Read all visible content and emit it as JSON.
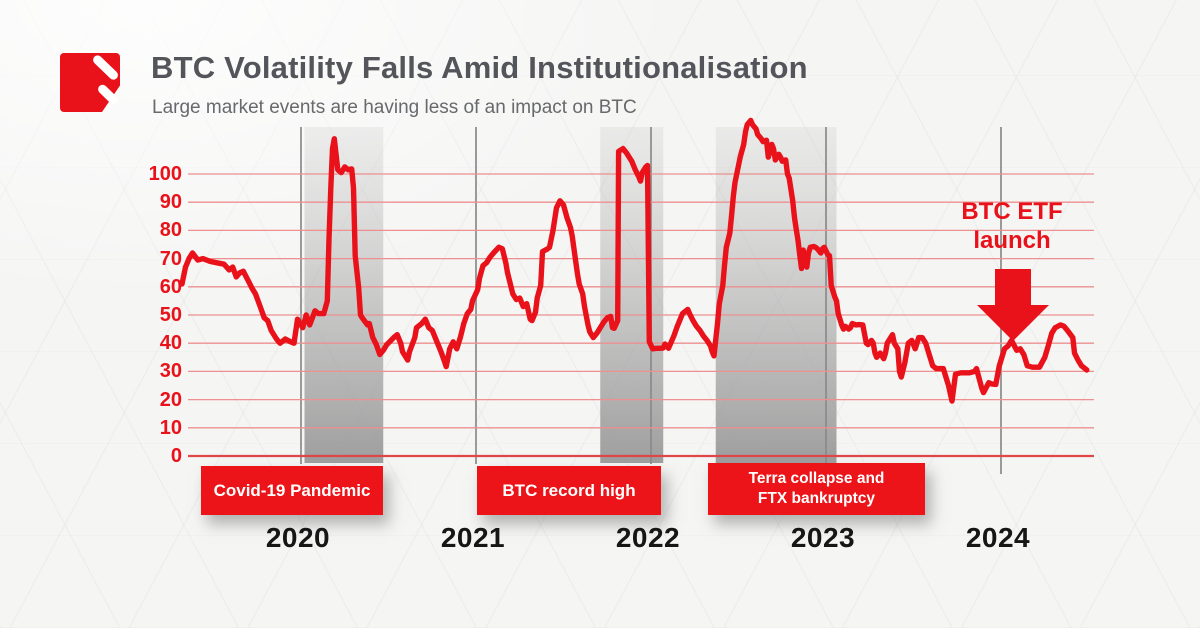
{
  "header": {
    "title": "BTC Volatility Falls Amid Institutionalisation",
    "subtitle": "Large market events are having less of an impact on BTC",
    "logo": "red-square-brand-mark"
  },
  "colors": {
    "accent_red": "#e9121a",
    "box_red": "#ec1418",
    "gridline_red": "#ec9090",
    "zero_line_red": "#e0474a",
    "year_line_gray": "#8a8a8a",
    "band_gray": "#9f9f9f",
    "title_gray": "#54555a",
    "subtitle_gray": "#68696c",
    "year_label_black": "#161616"
  },
  "events": {
    "covid": {
      "label": "Covid-19 Pandemic"
    },
    "btc_high": {
      "label": "BTC record high"
    },
    "terra": {
      "line1": "Terra collapse and",
      "line2": "FTX bankruptcy"
    }
  },
  "chart_data": {
    "type": "line",
    "title": "BTC Volatility Falls Amid Institutionalisation",
    "subtitle": "Large market events are having less of an impact on BTC",
    "xlabel": "",
    "ylabel": "",
    "xlim": [
      2019.3,
      2024.55
    ],
    "ylim": [
      0,
      120
    ],
    "grid": "horizontal-red, vertical-gray-year-lines",
    "legend": "none",
    "x_ticks": [
      2020,
      2021,
      2022,
      2023,
      2024
    ],
    "y_ticks": [
      100,
      90,
      80,
      70,
      60,
      50,
      40,
      30,
      20,
      10,
      0
    ],
    "bands": [
      {
        "label": "Covid-19 Pandemic",
        "from": 2020.02,
        "to": 2020.47
      },
      {
        "label": "BTC record high",
        "from": 2021.71,
        "to": 2022.07
      },
      {
        "label": "Terra collapse and FTX bankruptcy",
        "from": 2022.37,
        "to": 2023.06
      }
    ],
    "annotation": {
      "line1": "BTC ETF",
      "line2": "launch",
      "x": 2024.06,
      "arrow": "down"
    },
    "series": [
      {
        "name": "BTC volatility",
        "color": "#e9121a",
        "points": [
          [
            2019.32,
            61
          ],
          [
            2019.34,
            67
          ],
          [
            2019.36,
            70
          ],
          [
            2019.38,
            72
          ],
          [
            2019.41,
            69.5
          ],
          [
            2019.44,
            70
          ],
          [
            2019.48,
            69
          ],
          [
            2019.52,
            68.5
          ],
          [
            2019.56,
            68
          ],
          [
            2019.59,
            66
          ],
          [
            2019.61,
            67
          ],
          [
            2019.63,
            63.5
          ],
          [
            2019.65,
            65
          ],
          [
            2019.67,
            65.5
          ],
          [
            2019.7,
            62
          ],
          [
            2019.72,
            59.5
          ],
          [
            2019.74,
            57.5
          ],
          [
            2019.77,
            52.5
          ],
          [
            2019.79,
            49
          ],
          [
            2019.81,
            48
          ],
          [
            2019.83,
            44.5
          ],
          [
            2019.86,
            41.5
          ],
          [
            2019.88,
            40
          ],
          [
            2019.91,
            41.5
          ],
          [
            2019.94,
            40.5
          ],
          [
            2019.96,
            40
          ],
          [
            2019.98,
            48.5
          ],
          [
            2020.01,
            45.5
          ],
          [
            2020.03,
            50
          ],
          [
            2020.05,
            46.5
          ],
          [
            2020.08,
            51.5
          ],
          [
            2020.1,
            50.5
          ],
          [
            2020.13,
            50.5
          ],
          [
            2020.15,
            55
          ],
          [
            2020.16,
            77
          ],
          [
            2020.17,
            95
          ],
          [
            2020.18,
            109
          ],
          [
            2020.19,
            112.5
          ],
          [
            2020.21,
            101.5
          ],
          [
            2020.23,
            100.5
          ],
          [
            2020.25,
            102.5
          ],
          [
            2020.27,
            101.5
          ],
          [
            2020.29,
            101.8
          ],
          [
            2020.3,
            95
          ],
          [
            2020.31,
            71
          ],
          [
            2020.33,
            59.5
          ],
          [
            2020.34,
            50
          ],
          [
            2020.35,
            49
          ],
          [
            2020.38,
            46.5
          ],
          [
            2020.39,
            47
          ],
          [
            2020.41,
            42
          ],
          [
            2020.43,
            39.5
          ],
          [
            2020.45,
            36
          ],
          [
            2020.47,
            37.5
          ],
          [
            2020.49,
            39.5
          ],
          [
            2020.53,
            42
          ],
          [
            2020.55,
            43
          ],
          [
            2020.57,
            40
          ],
          [
            2020.58,
            37
          ],
          [
            2020.61,
            34
          ],
          [
            2020.62,
            37
          ],
          [
            2020.65,
            42
          ],
          [
            2020.66,
            45.5
          ],
          [
            2020.69,
            47
          ],
          [
            2020.71,
            48.5
          ],
          [
            2020.73,
            45.5
          ],
          [
            2020.75,
            44.5
          ],
          [
            2020.78,
            40
          ],
          [
            2020.8,
            37
          ],
          [
            2020.82,
            33.5
          ],
          [
            2020.83,
            31.7
          ],
          [
            2020.85,
            38
          ],
          [
            2020.87,
            40.5
          ],
          [
            2020.89,
            38
          ],
          [
            2020.91,
            42
          ],
          [
            2020.93,
            47
          ],
          [
            2020.95,
            50.5
          ],
          [
            2020.97,
            52
          ],
          [
            2020.98,
            55
          ],
          [
            2021.01,
            59
          ],
          [
            2021.02,
            63
          ],
          [
            2021.04,
            67.5
          ],
          [
            2021.06,
            68.5
          ],
          [
            2021.08,
            70.5
          ],
          [
            2021.1,
            72
          ],
          [
            2021.13,
            74
          ],
          [
            2021.15,
            73.5
          ],
          [
            2021.17,
            68.5
          ],
          [
            2021.18,
            65
          ],
          [
            2021.21,
            57.5
          ],
          [
            2021.23,
            55.5
          ],
          [
            2021.25,
            56
          ],
          [
            2021.27,
            53
          ],
          [
            2021.29,
            54
          ],
          [
            2021.31,
            48.5
          ],
          [
            2021.32,
            48
          ],
          [
            2021.34,
            51
          ],
          [
            2021.35,
            56
          ],
          [
            2021.37,
            60.5
          ],
          [
            2021.38,
            72.5
          ],
          [
            2021.41,
            73.5
          ],
          [
            2021.42,
            74
          ],
          [
            2021.44,
            80
          ],
          [
            2021.46,
            88
          ],
          [
            2021.48,
            90.5
          ],
          [
            2021.5,
            89
          ],
          [
            2021.52,
            84.5
          ],
          [
            2021.54,
            81
          ],
          [
            2021.55,
            78
          ],
          [
            2021.57,
            69
          ],
          [
            2021.58,
            64.5
          ],
          [
            2021.59,
            61
          ],
          [
            2021.61,
            57.5
          ],
          [
            2021.62,
            53
          ],
          [
            2021.64,
            46.5
          ],
          [
            2021.65,
            44
          ],
          [
            2021.67,
            42
          ],
          [
            2021.69,
            43.5
          ],
          [
            2021.71,
            45.5
          ],
          [
            2021.73,
            47.5
          ],
          [
            2021.75,
            49
          ],
          [
            2021.77,
            49.5
          ],
          [
            2021.78,
            45.5
          ],
          [
            2021.79,
            45.3
          ],
          [
            2021.81,
            48
          ],
          [
            2021.815,
            108
          ],
          [
            2021.84,
            109
          ],
          [
            2021.86,
            107.5
          ],
          [
            2021.89,
            104.5
          ],
          [
            2021.91,
            101.5
          ],
          [
            2021.93,
            99
          ],
          [
            2021.94,
            97.5
          ],
          [
            2021.95,
            100.5
          ],
          [
            2021.97,
            102.5
          ],
          [
            2021.98,
            103
          ],
          [
            2021.99,
            40.5
          ],
          [
            2022.01,
            38
          ],
          [
            2022.03,
            38.2
          ],
          [
            2022.05,
            38.2
          ],
          [
            2022.07,
            38.3
          ],
          [
            2022.08,
            39.7
          ],
          [
            2022.1,
            38.2
          ],
          [
            2022.13,
            42.5
          ],
          [
            2022.15,
            46
          ],
          [
            2022.17,
            49
          ],
          [
            2022.18,
            50.5
          ],
          [
            2022.21,
            52
          ],
          [
            2022.22,
            50.5
          ],
          [
            2022.24,
            48
          ],
          [
            2022.26,
            46
          ],
          [
            2022.28,
            44.5
          ],
          [
            2022.3,
            42.5
          ],
          [
            2022.32,
            41
          ],
          [
            2022.34,
            39
          ],
          [
            2022.35,
            37
          ],
          [
            2022.36,
            35.5
          ],
          [
            2022.38,
            47
          ],
          [
            2022.39,
            54
          ],
          [
            2022.41,
            60.5
          ],
          [
            2022.42,
            67.5
          ],
          [
            2022.43,
            74
          ],
          [
            2022.45,
            79
          ],
          [
            2022.46,
            85
          ],
          [
            2022.47,
            92
          ],
          [
            2022.48,
            97
          ],
          [
            2022.5,
            103
          ],
          [
            2022.51,
            106
          ],
          [
            2022.53,
            110.5
          ],
          [
            2022.54,
            115
          ],
          [
            2022.55,
            117.5
          ],
          [
            2022.57,
            119
          ],
          [
            2022.58,
            117.5
          ],
          [
            2022.6,
            116
          ],
          [
            2022.61,
            114
          ],
          [
            2022.63,
            112.5
          ],
          [
            2022.64,
            111.5
          ],
          [
            2022.66,
            112
          ],
          [
            2022.67,
            106
          ],
          [
            2022.69,
            110.5
          ],
          [
            2022.7,
            109
          ],
          [
            2022.71,
            105
          ],
          [
            2022.73,
            107
          ],
          [
            2022.74,
            106
          ],
          [
            2022.75,
            104.5
          ],
          [
            2022.77,
            105
          ],
          [
            2022.78,
            100
          ],
          [
            2022.79,
            98.5
          ],
          [
            2022.81,
            90.5
          ],
          [
            2022.82,
            84.5
          ],
          [
            2022.83,
            80.5
          ],
          [
            2022.84,
            76.5
          ],
          [
            2022.85,
            71.5
          ],
          [
            2022.86,
            66.5
          ],
          [
            2022.87,
            73
          ],
          [
            2022.89,
            67
          ],
          [
            2022.9,
            72
          ],
          [
            2022.91,
            74
          ],
          [
            2022.93,
            74.3
          ],
          [
            2022.94,
            74
          ],
          [
            2022.95,
            73.5
          ],
          [
            2022.97,
            72
          ],
          [
            2022.98,
            73.5
          ],
          [
            2022.99,
            74
          ],
          [
            2023.01,
            71.5
          ],
          [
            2023.02,
            71
          ],
          [
            2023.03,
            60.5
          ],
          [
            2023.05,
            56.5
          ],
          [
            2023.06,
            55
          ],
          [
            2023.07,
            50.5
          ],
          [
            2023.09,
            46.5
          ],
          [
            2023.1,
            45
          ],
          [
            2023.11,
            46
          ],
          [
            2023.13,
            45
          ],
          [
            2023.14,
            45.5
          ],
          [
            2023.15,
            47
          ],
          [
            2023.17,
            46.5
          ],
          [
            2023.19,
            46.6
          ],
          [
            2023.21,
            46.5
          ],
          [
            2023.23,
            40
          ],
          [
            2023.24,
            39.5
          ],
          [
            2023.26,
            41
          ],
          [
            2023.27,
            40
          ],
          [
            2023.28,
            36.5
          ],
          [
            2023.29,
            35
          ],
          [
            2023.31,
            36.5
          ],
          [
            2023.33,
            34.5
          ],
          [
            2023.34,
            36.5
          ],
          [
            2023.35,
            40
          ],
          [
            2023.37,
            42
          ],
          [
            2023.38,
            43
          ],
          [
            2023.39,
            40
          ],
          [
            2023.41,
            38
          ],
          [
            2023.42,
            30
          ],
          [
            2023.43,
            28
          ],
          [
            2023.45,
            33
          ],
          [
            2023.47,
            40
          ],
          [
            2023.49,
            41
          ],
          [
            2023.51,
            38
          ],
          [
            2023.53,
            42
          ],
          [
            2023.55,
            42
          ],
          [
            2023.57,
            40
          ],
          [
            2023.59,
            36
          ],
          [
            2023.61,
            32
          ],
          [
            2023.63,
            31
          ],
          [
            2023.65,
            31
          ],
          [
            2023.67,
            31
          ],
          [
            2023.7,
            25
          ],
          [
            2023.72,
            19.5
          ],
          [
            2023.74,
            29
          ],
          [
            2023.77,
            29.5
          ],
          [
            2023.8,
            29.5
          ],
          [
            2023.82,
            29.5
          ],
          [
            2023.85,
            30
          ],
          [
            2023.86,
            31
          ],
          [
            2023.89,
            24
          ],
          [
            2023.9,
            22.5
          ],
          [
            2023.93,
            26
          ],
          [
            2023.95,
            25.5
          ],
          [
            2023.97,
            25.4
          ],
          [
            2023.99,
            32
          ],
          [
            2024.02,
            38
          ],
          [
            2024.04,
            39
          ],
          [
            2024.06,
            41
          ],
          [
            2024.09,
            37.5
          ],
          [
            2024.11,
            38
          ],
          [
            2024.13,
            36
          ],
          [
            2024.15,
            32
          ],
          [
            2024.18,
            31.5
          ],
          [
            2024.2,
            31.5
          ],
          [
            2024.22,
            31.5
          ],
          [
            2024.25,
            35
          ],
          [
            2024.27,
            39
          ],
          [
            2024.29,
            43.5
          ],
          [
            2024.31,
            45.5
          ],
          [
            2024.34,
            46.5
          ],
          [
            2024.36,
            46
          ],
          [
            2024.38,
            44.5
          ],
          [
            2024.41,
            42
          ],
          [
            2024.42,
            36.5
          ],
          [
            2024.44,
            34
          ],
          [
            2024.46,
            32
          ],
          [
            2024.49,
            30.5
          ]
        ]
      }
    ]
  }
}
